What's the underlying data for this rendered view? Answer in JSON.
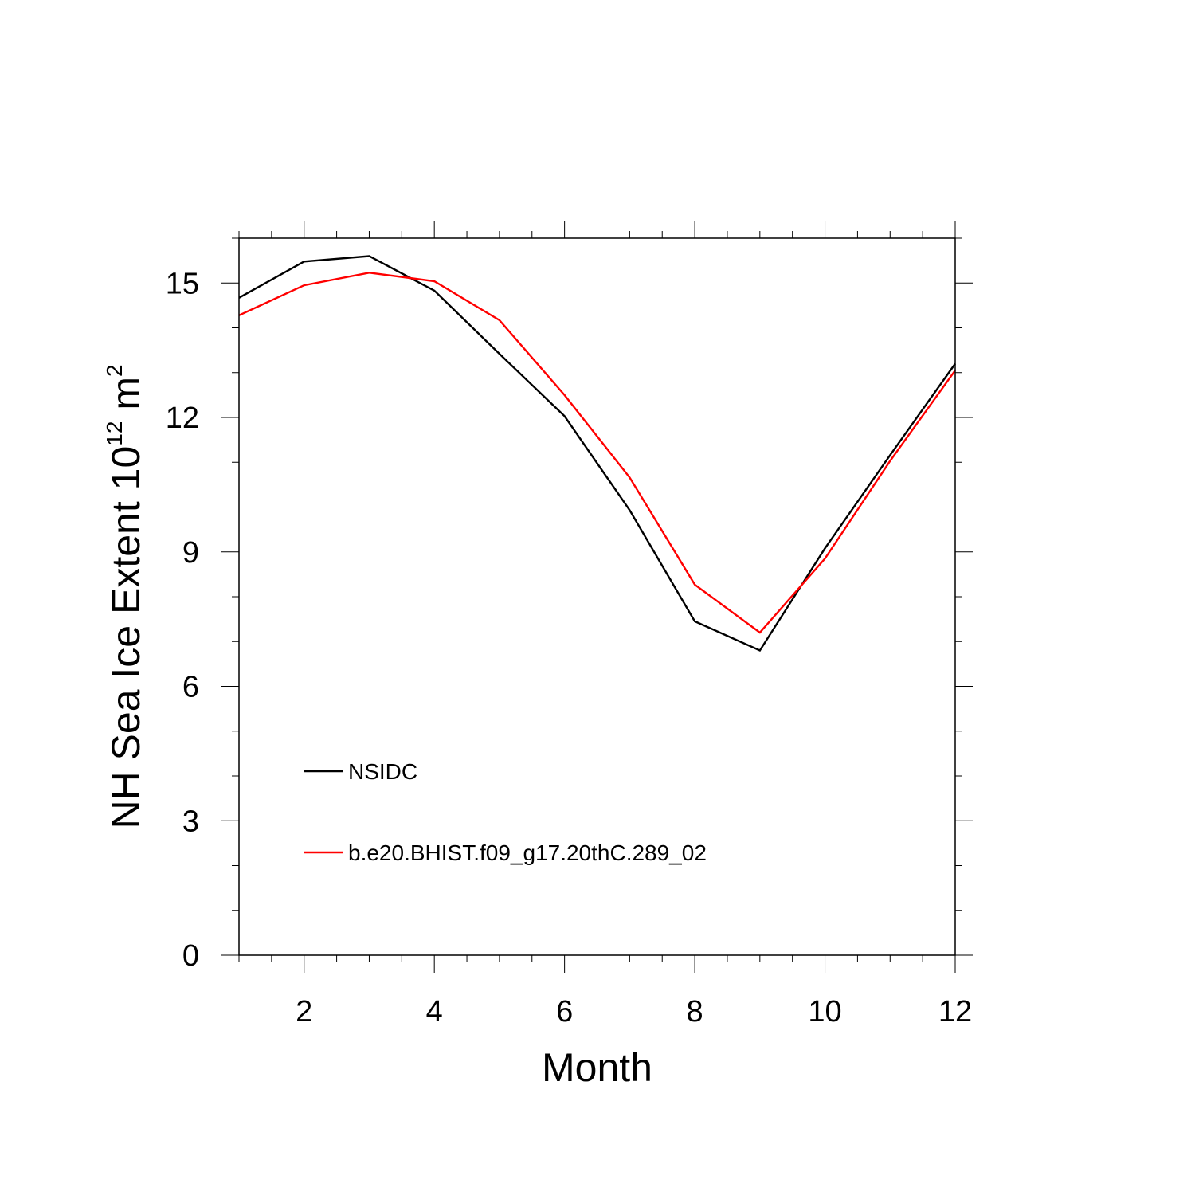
{
  "chart_data": {
    "type": "line",
    "title": "",
    "xlabel": "Month",
    "ylabel": {
      "base": "NH Sea Ice Extent 10",
      "exponent": "12",
      "unit": " m",
      "unit_exponent": "2"
    },
    "xlim": [
      1,
      12
    ],
    "ylim": [
      0,
      16
    ],
    "x_major_ticks": [
      2,
      4,
      6,
      8,
      10,
      12
    ],
    "x_tick_labels": [
      "2",
      "4",
      "6",
      "8",
      "10",
      "12"
    ],
    "y_major_ticks": [
      0,
      3,
      6,
      9,
      12,
      15
    ],
    "y_tick_labels": [
      "0",
      "3",
      "6",
      "9",
      "12",
      "15"
    ],
    "grid": false,
    "legend_position": "lower-left",
    "x": [
      1,
      2,
      3,
      4,
      5,
      6,
      7,
      8,
      9,
      10,
      11,
      12
    ],
    "series": [
      {
        "name": "NSIDC",
        "color": "#000000",
        "values": [
          14.67,
          15.48,
          15.6,
          14.83,
          13.42,
          12.03,
          9.93,
          7.45,
          6.8,
          9.08,
          11.16,
          13.2
        ]
      },
      {
        "name": "b.e20.BHIST.f09_g17.20thC.289_02",
        "color": "#ff0000",
        "values": [
          14.28,
          14.95,
          15.23,
          15.04,
          14.17,
          12.5,
          10.66,
          8.27,
          7.2,
          8.85,
          11.03,
          13.05
        ]
      }
    ]
  }
}
